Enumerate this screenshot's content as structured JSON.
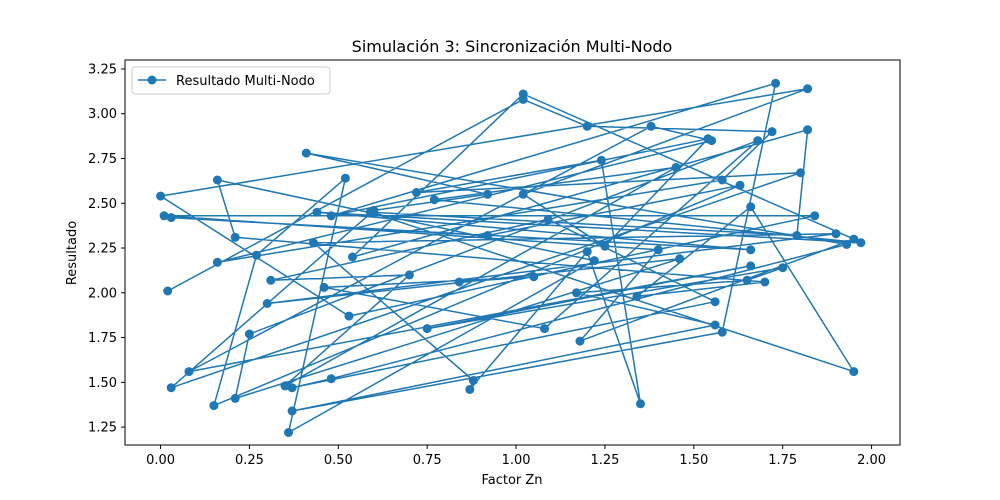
{
  "chart_data": {
    "type": "line",
    "title": "Simulación 3: Sincronización Multi-Nodo",
    "xlabel": "Factor Zn",
    "ylabel": "Resultado",
    "xlim": [
      -0.1,
      2.08
    ],
    "ylim": [
      1.15,
      3.3
    ],
    "xticks": [
      "0.00",
      "0.25",
      "0.50",
      "0.75",
      "1.00",
      "1.25",
      "1.50",
      "1.75",
      "2.00"
    ],
    "yticks": [
      "1.25",
      "1.50",
      "1.75",
      "2.00",
      "2.25",
      "2.50",
      "2.75",
      "3.00",
      "3.25"
    ],
    "legend_position": "upper-left",
    "grid": false,
    "series": [
      {
        "name": "Resultado Multi-Nodo",
        "color": "#1f77b4",
        "marker": "circle",
        "x": [
          0.02,
          1.02,
          1.2,
          1.72,
          1.58,
          0.16,
          1.55,
          1.38,
          0.08,
          1.66,
          0.75,
          1.75,
          1.65,
          1.17,
          1.56,
          0.37,
          1.58,
          1.73,
          0.48,
          1.54,
          1.25,
          1.02,
          1.82,
          0.0,
          0.53,
          1.84,
          0.01,
          1.4,
          1.18,
          1.95,
          1.02,
          0.54,
          1.82,
          1.79,
          0.59,
          1.95,
          1.66,
          1.34,
          1.7,
          0.21,
          0.16,
          1.22,
          0.36,
          0.52,
          0.27,
          0.15,
          1.63,
          0.92,
          0.03,
          1.66,
          0.44,
          1.97,
          0.77,
          1.45,
          0.35,
          0.7,
          0.31,
          1.09,
          1.56,
          0.37,
          0.48,
          1.93,
          0.41,
          0.92,
          0.6,
          0.03,
          1.8,
          0.72,
          1.24,
          1.35,
          1.2,
          0.87,
          0.88,
          0.43,
          1.9,
          0.3,
          1.46,
          0.21,
          0.25,
          1.68,
          1.08,
          0.46,
          1.05,
          0.84
        ],
        "y": [
          2.01,
          3.08,
          2.93,
          2.9,
          2.63,
          2.17,
          2.85,
          2.93,
          1.56,
          2.15,
          1.8,
          2.14,
          2.07,
          2.0,
          1.82,
          1.34,
          1.78,
          3.17,
          2.43,
          2.86,
          2.26,
          2.55,
          3.14,
          2.54,
          1.87,
          2.43,
          2.43,
          2.24,
          1.73,
          2.3,
          3.11,
          2.2,
          2.91,
          2.32,
          2.45,
          1.56,
          2.48,
          1.98,
          2.06,
          2.31,
          2.63,
          2.18,
          1.22,
          2.64,
          2.21,
          1.37,
          2.6,
          2.32,
          2.42,
          2.24,
          2.45,
          2.28,
          2.52,
          2.7,
          1.48,
          2.1,
          2.07,
          2.41,
          1.95,
          1.47,
          1.52,
          2.27,
          2.78,
          2.55,
          2.46,
          1.47,
          2.67,
          2.56,
          2.74,
          1.38,
          2.23,
          1.46,
          1.51,
          2.28,
          2.33,
          1.94,
          2.19,
          1.41,
          1.77,
          2.85,
          1.8,
          2.03,
          2.09,
          2.06
        ]
      }
    ]
  }
}
